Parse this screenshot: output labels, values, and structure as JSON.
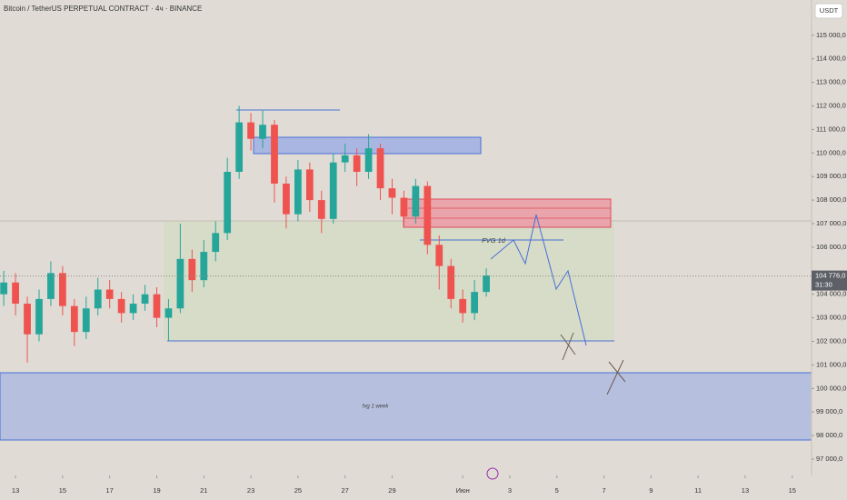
{
  "chart_data": {
    "type": "candlestick",
    "title": "Bitcoin / TetherUS PERPETUAL CONTRACT · 4ч · BINANCE",
    "currency": "USDT",
    "up_color": "#26a69a",
    "down_color": "#ef5350",
    "x": [
      -0.5,
      0,
      0.5,
      1,
      1.5,
      2,
      2.5,
      3,
      3.5,
      4,
      4.5,
      5,
      5.5,
      6,
      6.5,
      7,
      7.5,
      8,
      8.5,
      9,
      9.5,
      10,
      10.5,
      11,
      11.5,
      12,
      12.5,
      13,
      13.5,
      14,
      14.5,
      15,
      15.5,
      16,
      16.5,
      17,
      17.5,
      18,
      18.5,
      19,
      19.5,
      20
    ],
    "open": [
      104000,
      104500,
      103600,
      102300,
      103800,
      104900,
      103500,
      102400,
      103400,
      104200,
      103800,
      103200,
      103600,
      104000,
      103000,
      103400,
      105500,
      104600,
      105800,
      106600,
      109200,
      111300,
      110600,
      111200,
      108700,
      107400,
      109300,
      108000,
      107200,
      109600,
      109900,
      109200,
      110200,
      108500,
      108100,
      107300,
      108600,
      106100,
      105200,
      103800,
      103200,
      104100
    ],
    "high": [
      105000,
      104900,
      103900,
      104200,
      105400,
      105200,
      103800,
      103900,
      104700,
      104600,
      104100,
      104000,
      104400,
      104300,
      103800,
      107000,
      105900,
      106300,
      107100,
      109800,
      112000,
      111700,
      111800,
      111400,
      109000,
      109700,
      109600,
      108400,
      110000,
      110400,
      110200,
      110800,
      110400,
      108900,
      108400,
      108900,
      108800,
      106500,
      105500,
      104200,
      104600,
      105100
    ],
    "low": [
      103500,
      103100,
      101100,
      102000,
      103500,
      103100,
      101800,
      102100,
      103100,
      103400,
      102800,
      102900,
      103300,
      102600,
      102000,
      103200,
      104100,
      104300,
      105400,
      106300,
      108900,
      110100,
      110200,
      107900,
      106800,
      107100,
      107500,
      106600,
      107000,
      109200,
      108600,
      108900,
      108000,
      107400,
      106900,
      107000,
      105700,
      104200,
      103400,
      102800,
      102900,
      103900
    ],
    "close": [
      104500,
      103600,
      102300,
      103800,
      104900,
      103500,
      102400,
      103400,
      104200,
      103800,
      103200,
      103600,
      104000,
      103000,
      103400,
      105500,
      104600,
      105800,
      106600,
      109200,
      111300,
      110600,
      111200,
      108700,
      107400,
      109300,
      108000,
      107200,
      109600,
      109900,
      109200,
      110200,
      108500,
      108100,
      107300,
      108600,
      106100,
      105200,
      103800,
      103200,
      104100,
      104800
    ],
    "ylim": [
      96305,
      116498
    ],
    "yticks": [
      {
        "value": 97000,
        "label": "97 000,0"
      },
      {
        "value": 98000,
        "label": "98 000,0"
      },
      {
        "value": 99000,
        "label": "99 000,0"
      },
      {
        "value": 100000,
        "label": "100 000,0"
      },
      {
        "value": 101000,
        "label": "101 000,0"
      },
      {
        "value": 102000,
        "label": "102 000,0"
      },
      {
        "value": 103000,
        "label": "103 000,0"
      },
      {
        "value": 104000,
        "label": "104 000,0"
      },
      {
        "value": 106000,
        "label": "106 000,0"
      },
      {
        "value": 107000,
        "label": "107 000,0"
      },
      {
        "value": 108000,
        "label": "108 000,0"
      },
      {
        "value": 109000,
        "label": "109 000,0"
      },
      {
        "value": 110000,
        "label": "110 000,0"
      },
      {
        "value": 111000,
        "label": "111 000,0"
      },
      {
        "value": 112000,
        "label": "112 000,0"
      },
      {
        "value": 113000,
        "label": "113 000,0"
      },
      {
        "value": 114000,
        "label": "114 000,0"
      },
      {
        "value": 115000,
        "label": "115 000,0"
      }
    ],
    "xlim": [
      -0.66,
      33.82
    ],
    "xticks": [
      {
        "value": 0,
        "label": "13"
      },
      {
        "value": 2,
        "label": "15"
      },
      {
        "value": 4,
        "label": "17"
      },
      {
        "value": 6,
        "label": "19"
      },
      {
        "value": 8,
        "label": "21"
      },
      {
        "value": 10,
        "label": "23"
      },
      {
        "value": 12,
        "label": "25"
      },
      {
        "value": 14,
        "label": "27"
      },
      {
        "value": 16,
        "label": "29"
      },
      {
        "value": 19,
        "label": "Июн"
      },
      {
        "value": 21,
        "label": "3"
      },
      {
        "value": 23,
        "label": "5"
      },
      {
        "value": 25,
        "label": "7"
      },
      {
        "value": 27,
        "label": "9"
      },
      {
        "value": 29,
        "label": "11"
      },
      {
        "value": 31,
        "label": "13"
      },
      {
        "value": 33,
        "label": "15"
      }
    ],
    "last_price": {
      "value": 104776,
      "label": "104 776,0"
    },
    "countdown": "31:30",
    "annotations": [
      "FVG 1d",
      "fvg 1 week"
    ]
  }
}
